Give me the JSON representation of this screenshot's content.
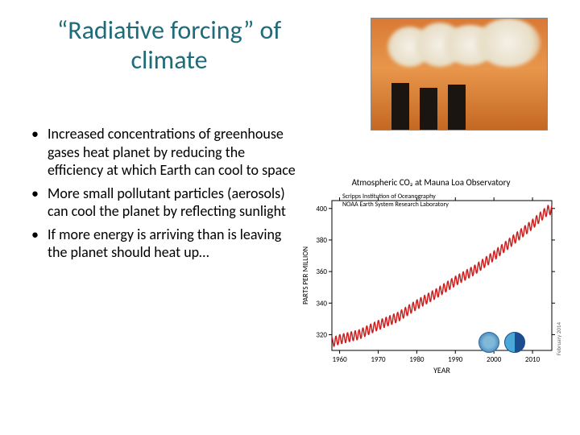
{
  "title": "“Radiative forcing” of climate",
  "bullets": [
    "Increased concentrations of greenhouse gases heat planet by reducing the efficiency at which Earth can cool to space",
    "More small pollutant particles (aerosols) can cool the planet by reflecting sunlight",
    "If more energy is arriving than is leaving the planet should heat up…"
  ],
  "smoke_image": {
    "description": "industrial smokestacks emitting smoke against orange sky",
    "sky_gradient": [
      "#d97935",
      "#e8964b",
      "#c46824"
    ],
    "stack_color": "#1a1510",
    "smoke_color": "#f5f0e8"
  },
  "chart": {
    "type": "line",
    "title": "Atmospheric CO₂ at Mauna Loa Observatory",
    "attribution": [
      "Scripps Institution of Oceanography",
      "NOAA Earth System Research Laboratory"
    ],
    "xlabel": "YEAR",
    "ylabel": "PARTS PER MILLION",
    "xlim": [
      1958,
      2015
    ],
    "ylim": [
      310,
      405
    ],
    "xticks": [
      1960,
      1970,
      1980,
      1990,
      2000,
      2010
    ],
    "yticks": [
      320,
      340,
      360,
      380,
      400
    ],
    "line_color": "#cc1f1f",
    "line_width": 1.5,
    "seasonal_amplitude": 3,
    "background_color": "#ffffff",
    "axis_color": "#000000",
    "label_fontsize": 9,
    "title_fontsize": 11,
    "data_years": [
      1958,
      1960,
      1965,
      1970,
      1975,
      1980,
      1985,
      1990,
      1995,
      2000,
      2005,
      2010,
      2014
    ],
    "data_values": [
      315,
      317,
      320,
      326,
      331,
      339,
      346,
      354,
      361,
      370,
      380,
      390,
      399
    ],
    "logos": [
      "scripps-globe",
      "noaa-circle"
    ],
    "side_text": "February 2014"
  }
}
